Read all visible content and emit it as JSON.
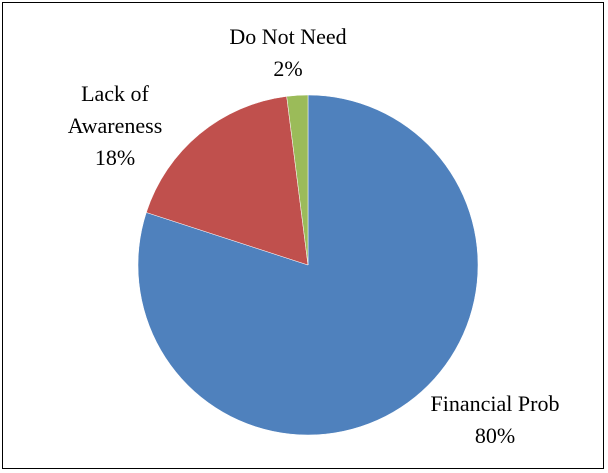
{
  "chart_data": {
    "type": "pie",
    "title": "",
    "categories": [
      "Financial Prob",
      "Lack of Awareness",
      "Do Not Need"
    ],
    "values": [
      80,
      18,
      2
    ],
    "percent_labels": [
      "80%",
      "18%",
      "2%"
    ],
    "label_lines": [
      [
        "Financial Prob",
        "80%"
      ],
      [
        "Lack of",
        "Awareness",
        "18%"
      ],
      [
        "Do Not Need",
        "2%"
      ]
    ],
    "colors": [
      "#4F81BD",
      "#C0504D",
      "#9BBB59"
    ],
    "start_angle_deg": 0,
    "direction": "clockwise",
    "legend": "none",
    "border": true
  }
}
